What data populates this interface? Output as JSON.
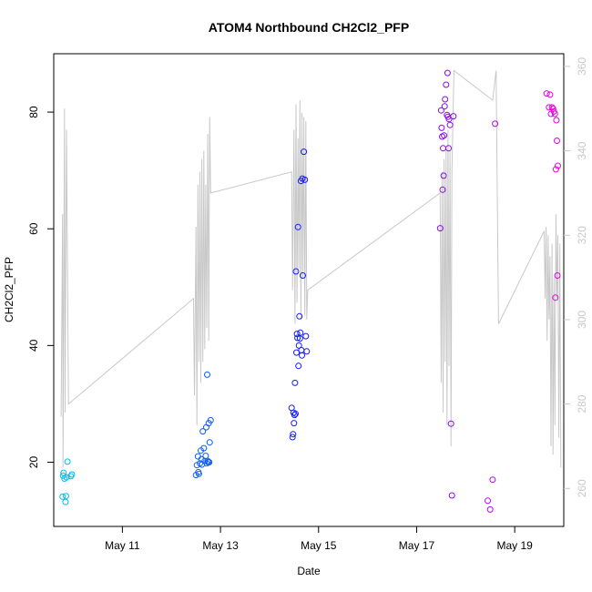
{
  "chart_data": {
    "type": "scatter",
    "title": "ATOM4 Northbound CH2Cl2_PFP",
    "xlabel": "Date",
    "ylabel": "CH2Cl2_PFP",
    "x_unit": "day of May 2016",
    "xlim": [
      9.6,
      20.0
    ],
    "ylim": [
      9.0,
      90.0
    ],
    "y2lim": [
      251.0,
      363.0
    ],
    "x_ticks": [
      11,
      13,
      15,
      17,
      19
    ],
    "x_tick_labels": [
      "May 11",
      "May 13",
      "May 15",
      "May 17",
      "May 19"
    ],
    "y_ticks": [
      20,
      40,
      60,
      80
    ],
    "y_tick_labels": [
      "20",
      "40",
      "60",
      "80"
    ],
    "y2_ticks": [
      260,
      280,
      300,
      320,
      340,
      360
    ],
    "y2_tick_labels": [
      "260",
      "280",
      "300",
      "320",
      "340",
      "360"
    ],
    "colors": {
      "point_start": "#00bfef",
      "point_mid": "#1515ff",
      "point_end": "#ef00e0",
      "altitude_line": "#c8c8c8",
      "axis": "#000000",
      "right_axis": "#c8c8c8"
    },
    "series": [
      {
        "name": "CH2Cl2_PFP",
        "axis": "left",
        "x": [
          9.78,
          9.8,
          9.82,
          9.84,
          9.86,
          9.88,
          9.95,
          9.97,
          9.85,
          9.79,
          12.5,
          12.52,
          12.54,
          12.55,
          12.56,
          12.58,
          12.6,
          12.61,
          12.62,
          12.64,
          12.66,
          12.68,
          12.7,
          12.71,
          12.73,
          12.75,
          12.76,
          12.78,
          12.8,
          12.72,
          12.74,
          12.77,
          14.45,
          14.47,
          14.48,
          14.49,
          14.5,
          14.51,
          14.52,
          14.53,
          14.54,
          14.55,
          14.56,
          14.57,
          14.58,
          14.59,
          14.6,
          14.61,
          14.62,
          14.63,
          14.64,
          14.65,
          14.66,
          14.67,
          14.68,
          14.7,
          14.72,
          14.74,
          14.76,
          17.48,
          17.5,
          17.51,
          17.52,
          17.53,
          17.54,
          17.55,
          17.56,
          17.57,
          17.58,
          17.6,
          17.62,
          17.63,
          17.64,
          17.65,
          17.66,
          17.68,
          17.7,
          17.72,
          17.75,
          18.45,
          18.5,
          18.55,
          18.6,
          19.65,
          19.7,
          19.72,
          19.74,
          19.76,
          19.78,
          19.8,
          19.82,
          19.84,
          19.86,
          19.88,
          19.85,
          19.87,
          19.83
        ],
        "y": [
          14.1,
          18.2,
          17.2,
          13.2,
          17.4,
          20.1,
          17.6,
          17.9,
          14.2,
          17.7,
          17.8,
          19.5,
          21.0,
          18.3,
          18.0,
          19.8,
          22.0,
          20.5,
          19.6,
          25.3,
          22.4,
          20.2,
          21.1,
          26.0,
          35.0,
          20.0,
          26.7,
          23.4,
          27.2,
          19.8,
          20.2,
          20.0,
          29.3,
          24.3,
          24.8,
          28.5,
          26.7,
          28.1,
          33.6,
          28.3,
          52.7,
          38.8,
          42.0,
          41.3,
          60.3,
          36.5,
          40.0,
          45.0,
          41.2,
          42.2,
          68.2,
          39.2,
          38.3,
          68.6,
          52.0,
          73.2,
          68.4,
          41.6,
          39.0,
          60.1,
          80.3,
          77.3,
          75.8,
          66.7,
          73.8,
          69.1,
          76.0,
          81.0,
          82.2,
          84.7,
          79.5,
          86.7,
          79.2,
          73.8,
          78.8,
          77.8,
          26.6,
          14.3,
          79.3,
          13.4,
          11.9,
          17.0,
          78.0,
          83.2,
          80.8,
          83.0,
          79.7,
          80.8,
          80.6,
          80.1,
          79.7,
          70.2,
          75.1,
          70.8,
          78.6,
          52.0,
          48.2
        ]
      },
      {
        "name": "Altitude",
        "axis": "right",
        "x": [
          9.75,
          9.78,
          9.79,
          9.82,
          9.83,
          9.86,
          9.9,
          12.45,
          12.47,
          12.5,
          12.52,
          12.54,
          12.56,
          12.58,
          12.6,
          12.62,
          12.64,
          12.66,
          12.68,
          12.7,
          12.72,
          12.74,
          12.76,
          12.78,
          12.8,
          14.45,
          14.47,
          14.5,
          14.52,
          14.54,
          14.56,
          14.58,
          14.6,
          14.62,
          14.64,
          14.66,
          14.68,
          14.7,
          14.72,
          14.74,
          14.76,
          14.78,
          17.48,
          17.5,
          17.52,
          17.54,
          17.56,
          17.58,
          17.6,
          17.62,
          17.64,
          17.66,
          17.68,
          17.7,
          17.72,
          17.76,
          18.55,
          18.62,
          18.67,
          19.6,
          19.62,
          19.64,
          19.66,
          19.68,
          19.7,
          19.72,
          19.74,
          19.76,
          19.78,
          19.8,
          19.82,
          19.84,
          19.86,
          19.88,
          19.9,
          19.92,
          19.94
        ],
        "y": [
          277,
          325,
          265,
          350,
          278,
          345,
          280,
          305,
          282,
          322,
          275,
          332,
          290,
          335,
          285,
          338,
          290,
          340,
          293,
          332,
          298,
          344,
          295,
          348,
          330,
          335,
          307,
          345,
          299,
          351,
          304,
          343,
          312,
          352,
          300,
          349,
          310,
          348,
          301,
          347,
          300,
          307,
          330,
          285,
          335,
          278,
          338,
          290,
          340,
          275,
          345,
          289,
          340,
          270,
          335,
          359,
          352,
          359,
          299,
          321,
          305,
          322,
          295,
          320,
          300,
          315,
          270,
          318,
          268,
          310,
          275,
          325,
          305,
          320,
          272,
          318,
          265
        ],
        "note": "gray reference line (right axis) with flight altitude-like values"
      }
    ]
  }
}
